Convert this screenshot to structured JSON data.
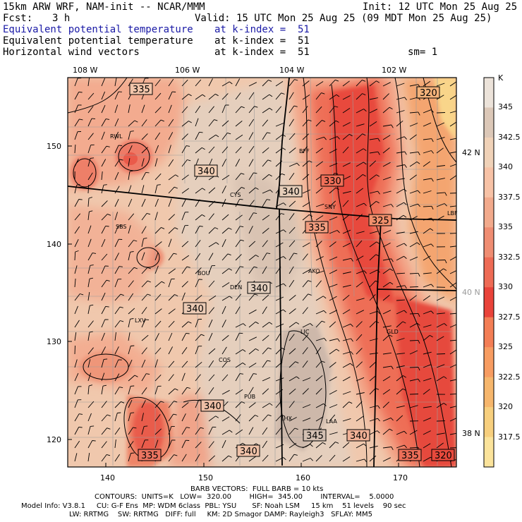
{
  "header": {
    "left_line1": "15km ARW WRF, NAM-init -- NCAR/MMM",
    "right_line1": "Init: 12 UTC Mon 25 Aug 25",
    "fcst_label": "Fcst:",
    "fcst_value": "3 h",
    "valid": "Valid: 15 UTC Mon 25 Aug 25 (09 MDT Mon 25 Aug 25)",
    "fields": [
      {
        "name": "Equivalent potential temperature",
        "level": "at k-index =  51",
        "color": "#1a1aa6"
      },
      {
        "name": "Equivalent potential temperature",
        "level": "at k-index =  51",
        "color": "#000000"
      },
      {
        "name": "Horizontal wind vectors",
        "level": "at k-index =  51",
        "color": "#000000"
      }
    ],
    "sm": "sm= 1"
  },
  "map": {
    "top_lon_labels": [
      "108 W",
      "106 W",
      "104 W",
      "102 W"
    ],
    "right_lat_labels": [
      "42 N",
      "40 N",
      "38 N"
    ],
    "left_y_ticks": [
      "150",
      "140",
      "130",
      "120"
    ],
    "bottom_x_ticks": [
      "140",
      "150",
      "160",
      "170"
    ],
    "stations": [
      "RWL",
      "CYS",
      "BFF",
      "SNY",
      "LBF",
      "SBS",
      "BOU",
      "DEN",
      "AKO",
      "LXV",
      "LIC",
      "GLD",
      "COS",
      "PUB",
      "LHX",
      "LAA"
    ],
    "contour_labels": [
      "335",
      "340",
      "340",
      "330",
      "320",
      "335",
      "325",
      "340",
      "340",
      "340",
      "345",
      "340",
      "335",
      "340",
      "335",
      "320"
    ]
  },
  "colorbar": {
    "unit": "K",
    "labels": [
      "345",
      "342.5",
      "340",
      "337.5",
      "335",
      "332.5",
      "330",
      "327.5",
      "325",
      "322.5",
      "320",
      "317.5"
    ],
    "colors": [
      "#ece3da",
      "#dcc8b8",
      "#f0d2b8",
      "#f7c2a6",
      "#f2aa8c",
      "#ef8d72",
      "#ee6b55",
      "#e9433a",
      "#f37e55",
      "#f79c61",
      "#f6b66c",
      "#f7cf7e",
      "#fbe39b"
    ]
  },
  "footer": {
    "line1": "BARB VECTORS:  FULL BARB = 10 kts",
    "line2": "CONTOURS:  UNITS=K   LOW=  320.00        HIGH=  345.00        INTERVAL=    5.0000",
    "line3": "Model Info: V3.8.1     CU: G-F Ens  MP: WDM 6class  PBL: YSU       SF: Noah LSM     15 km    51 levels    90 sec",
    "line4": "LW: RRTMG    SW: RRTMG   DIFF: full     KM: 2D Smagor DAMP: Rayleigh3   SFLAY: MM5"
  }
}
